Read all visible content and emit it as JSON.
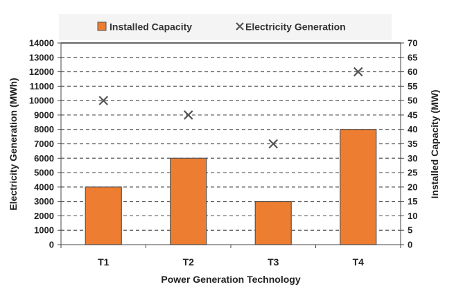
{
  "chart_data": {
    "type": "bar+scatter",
    "categories": [
      "T1",
      "T2",
      "T3",
      "T4"
    ],
    "xlabel": "Power Generation Technology",
    "ylabel_left": "Electricity Generation (MWh)",
    "ylabel_right": "Installed Capacity (MW)",
    "ylim_left": [
      0,
      14000
    ],
    "ylim_right": [
      0,
      70
    ],
    "yticks_left": [
      0,
      1000,
      2000,
      3000,
      4000,
      5000,
      6000,
      7000,
      8000,
      9000,
      10000,
      11000,
      12000,
      13000,
      14000
    ],
    "yticks_right": [
      0,
      5,
      10,
      15,
      20,
      25,
      30,
      35,
      40,
      45,
      50,
      55,
      60,
      65,
      70
    ],
    "grid": "horizontal dashed",
    "legend_placement": "top",
    "series": [
      {
        "name": "Installed Capacity",
        "type": "bar",
        "axis": "right",
        "values": [
          20,
          30,
          15,
          40
        ],
        "color": "#ED7D31"
      },
      {
        "name": "Electricity Generation",
        "type": "scatter",
        "marker": "x",
        "axis": "left",
        "values": [
          10000,
          9000,
          7000,
          12000
        ],
        "color": "#555555"
      }
    ]
  }
}
